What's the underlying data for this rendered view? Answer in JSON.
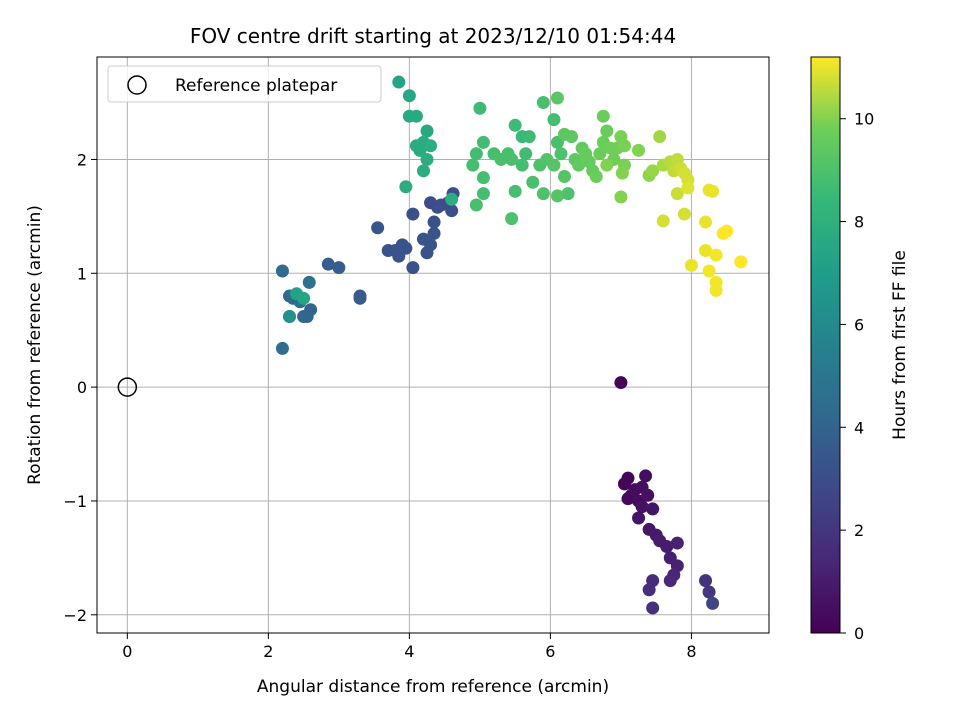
{
  "chart_data": {
    "type": "scatter",
    "title": "FOV centre drift starting at 2023/12/10 01:54:44",
    "xlabel": "Angular distance from reference (arcmin)",
    "ylabel": "Rotation from reference (arcmin)",
    "xlim": [
      -0.43,
      9.1
    ],
    "ylim": [
      -2.16,
      2.9
    ],
    "xticks": [
      "0",
      "2",
      "4",
      "6",
      "8"
    ],
    "yticks": [
      "−2",
      "−1",
      "0",
      "1",
      "2"
    ],
    "grid": true,
    "legend": {
      "placement": "upper-left",
      "label": "Reference platepar"
    },
    "reference_point": {
      "x": 0,
      "y": 0
    },
    "colorbar": {
      "label": "Hours from first FF file",
      "range": [
        0,
        11.2
      ],
      "ticks": [
        "0",
        "2",
        "4",
        "6",
        "8",
        "10"
      ],
      "colormap": "viridis"
    },
    "series": [
      {
        "points": [
          [
            7.0,
            0.04,
            0.1
          ],
          [
            7.05,
            -0.85,
            0.2
          ],
          [
            7.1,
            -0.8,
            0.2
          ],
          [
            7.15,
            -0.95,
            0.3
          ],
          [
            7.1,
            -0.98,
            0.3
          ],
          [
            7.2,
            -0.9,
            0.4
          ],
          [
            7.25,
            -1.0,
            0.4
          ],
          [
            7.3,
            -0.88,
            0.5
          ],
          [
            7.35,
            -0.78,
            0.5
          ],
          [
            7.38,
            -0.95,
            0.6
          ],
          [
            7.3,
            -1.05,
            0.6
          ],
          [
            7.25,
            -1.15,
            0.7
          ],
          [
            7.45,
            -1.07,
            0.7
          ],
          [
            7.4,
            -1.25,
            0.8
          ],
          [
            7.5,
            -1.3,
            0.9
          ],
          [
            7.55,
            -1.35,
            1.0
          ],
          [
            7.65,
            -1.4,
            1.0
          ],
          [
            7.7,
            -1.5,
            1.1
          ],
          [
            7.8,
            -1.57,
            1.2
          ],
          [
            7.8,
            -1.37,
            1.2
          ],
          [
            7.75,
            -1.65,
            1.4
          ],
          [
            7.7,
            -1.7,
            1.5
          ],
          [
            7.45,
            -1.7,
            1.6
          ],
          [
            7.4,
            -1.78,
            1.7
          ],
          [
            7.45,
            -1.94,
            1.8
          ],
          [
            8.2,
            -1.7,
            1.9
          ],
          [
            8.25,
            -1.8,
            2.0
          ],
          [
            8.3,
            -1.9,
            2.6
          ],
          [
            4.05,
            1.05,
            3.2
          ],
          [
            4.25,
            1.18,
            3.3
          ],
          [
            4.2,
            1.3,
            3.4
          ],
          [
            4.35,
            1.35,
            3.3
          ],
          [
            4.3,
            1.25,
            3.3
          ],
          [
            4.35,
            1.45,
            3.2
          ],
          [
            4.45,
            1.6,
            3.1
          ],
          [
            4.4,
            1.58,
            3.1
          ],
          [
            4.6,
            1.55,
            3.1
          ],
          [
            4.55,
            1.62,
            3.0
          ],
          [
            4.3,
            1.62,
            3.0
          ],
          [
            4.05,
            1.52,
            3.1
          ],
          [
            3.95,
            1.22,
            3.2
          ],
          [
            3.85,
            1.15,
            3.3
          ],
          [
            3.8,
            1.2,
            3.3
          ],
          [
            3.9,
            1.25,
            3.3
          ],
          [
            3.7,
            1.2,
            3.3
          ],
          [
            3.55,
            1.4,
            3.4
          ],
          [
            3.3,
            0.8,
            3.6
          ],
          [
            3.3,
            0.78,
            3.6
          ],
          [
            3.0,
            1.05,
            3.7
          ],
          [
            2.85,
            1.08,
            3.8
          ],
          [
            2.6,
            0.68,
            4.0
          ],
          [
            2.55,
            0.62,
            4.1
          ],
          [
            2.5,
            0.62,
            4.1
          ],
          [
            2.3,
            0.8,
            4.2
          ],
          [
            2.35,
            0.78,
            4.3
          ],
          [
            2.2,
            1.02,
            4.4
          ],
          [
            2.2,
            0.34,
            4.5
          ],
          [
            2.45,
            0.75,
            4.6
          ],
          [
            2.58,
            0.92,
            4.7
          ],
          [
            2.3,
            0.62,
            6.2
          ],
          [
            2.3,
            0.62,
            6.4
          ],
          [
            2.4,
            0.82,
            7.2
          ],
          [
            2.5,
            0.78,
            7.4
          ],
          [
            4.62,
            1.7,
            3.1
          ],
          [
            4.6,
            1.65,
            7.9
          ],
          [
            3.85,
            2.68,
            7.4
          ],
          [
            4.0,
            2.56,
            7.5
          ],
          [
            4.0,
            2.38,
            7.6
          ],
          [
            4.1,
            2.38,
            7.6
          ],
          [
            4.25,
            2.25,
            7.6
          ],
          [
            4.2,
            2.15,
            7.7
          ],
          [
            4.1,
            2.12,
            7.7
          ],
          [
            4.15,
            2.08,
            7.7
          ],
          [
            4.3,
            2.12,
            7.8
          ],
          [
            4.25,
            2.0,
            7.8
          ],
          [
            4.2,
            1.9,
            7.8
          ],
          [
            3.95,
            1.76,
            7.8
          ],
          [
            5.0,
            2.45,
            8.6
          ],
          [
            5.05,
            2.15,
            8.7
          ],
          [
            4.95,
            2.05,
            8.7
          ],
          [
            4.9,
            1.95,
            8.8
          ],
          [
            4.95,
            1.6,
            8.9
          ],
          [
            5.05,
            1.7,
            8.8
          ],
          [
            5.05,
            1.84,
            8.8
          ],
          [
            5.2,
            2.05,
            8.8
          ],
          [
            5.3,
            2.0,
            8.9
          ],
          [
            5.4,
            2.05,
            8.9
          ],
          [
            5.45,
            2.0,
            8.9
          ],
          [
            5.5,
            2.3,
            8.6
          ],
          [
            5.6,
            2.2,
            8.5
          ],
          [
            5.7,
            2.2,
            8.6
          ],
          [
            5.65,
            2.05,
            8.7
          ],
          [
            5.6,
            1.95,
            8.8
          ],
          [
            5.5,
            1.72,
            8.8
          ],
          [
            5.45,
            1.48,
            9.0
          ],
          [
            5.75,
            1.8,
            8.9
          ],
          [
            5.85,
            1.95,
            9.0
          ],
          [
            5.9,
            1.7,
            9.0
          ],
          [
            5.95,
            2.0,
            9.1
          ],
          [
            5.9,
            2.5,
            8.9
          ],
          [
            6.05,
            2.35,
            8.8
          ],
          [
            6.1,
            2.15,
            8.9
          ],
          [
            6.15,
            2.05,
            9.0
          ],
          [
            6.2,
            1.85,
            9.2
          ],
          [
            6.25,
            1.7,
            9.0
          ],
          [
            6.1,
            1.68,
            9.2
          ],
          [
            6.05,
            1.95,
            9.2
          ],
          [
            6.1,
            2.54,
            9.3
          ],
          [
            6.2,
            2.22,
            9.4
          ],
          [
            6.3,
            2.2,
            9.4
          ],
          [
            6.35,
            2.0,
            9.4
          ],
          [
            6.4,
            1.95,
            9.5
          ],
          [
            6.45,
            2.1,
            9.5
          ],
          [
            6.5,
            2.05,
            9.6
          ],
          [
            6.55,
            1.98,
            9.6
          ],
          [
            6.6,
            1.9,
            9.6
          ],
          [
            6.65,
            1.85,
            9.7
          ],
          [
            6.7,
            2.05,
            9.7
          ],
          [
            6.75,
            2.15,
            9.7
          ],
          [
            6.75,
            2.38,
            9.7
          ],
          [
            6.8,
            2.25,
            9.7
          ],
          [
            6.85,
            2.1,
            9.8
          ],
          [
            6.9,
            2.0,
            9.8
          ],
          [
            6.95,
            2.1,
            9.8
          ],
          [
            7.0,
            2.2,
            9.9
          ],
          [
            7.05,
            2.12,
            9.9
          ],
          [
            7.05,
            1.95,
            9.9
          ],
          [
            7.02,
            1.88,
            10.0
          ],
          [
            7.0,
            1.67,
            10.0
          ],
          [
            7.25,
            2.08,
            10.0
          ],
          [
            6.8,
            1.95,
            10.0
          ],
          [
            7.4,
            1.86,
            10.1
          ],
          [
            7.45,
            1.9,
            10.2
          ],
          [
            7.55,
            2.2,
            10.3
          ],
          [
            7.6,
            1.95,
            10.4
          ],
          [
            7.7,
            1.98,
            10.5
          ],
          [
            7.75,
            1.9,
            10.6
          ],
          [
            7.8,
            2.0,
            10.6
          ],
          [
            7.85,
            1.92,
            10.7
          ],
          [
            7.9,
            1.88,
            10.8
          ],
          [
            7.95,
            1.82,
            10.8
          ],
          [
            7.8,
            1.7,
            10.7
          ],
          [
            7.9,
            1.52,
            10.8
          ],
          [
            7.6,
            1.46,
            10.8
          ],
          [
            7.95,
            1.75,
            10.9
          ],
          [
            8.0,
            1.07,
            11.0
          ],
          [
            8.2,
            1.2,
            11.0
          ],
          [
            8.2,
            1.45,
            11.0
          ],
          [
            8.25,
            1.73,
            11.0
          ],
          [
            8.3,
            1.72,
            11.0
          ],
          [
            8.25,
            1.02,
            11.1
          ],
          [
            8.35,
            0.92,
            11.1
          ],
          [
            8.35,
            0.85,
            11.1
          ],
          [
            8.35,
            1.16,
            11.1
          ],
          [
            8.45,
            1.35,
            11.2
          ],
          [
            8.5,
            1.37,
            11.2
          ],
          [
            8.7,
            1.1,
            11.2
          ]
        ]
      }
    ]
  }
}
